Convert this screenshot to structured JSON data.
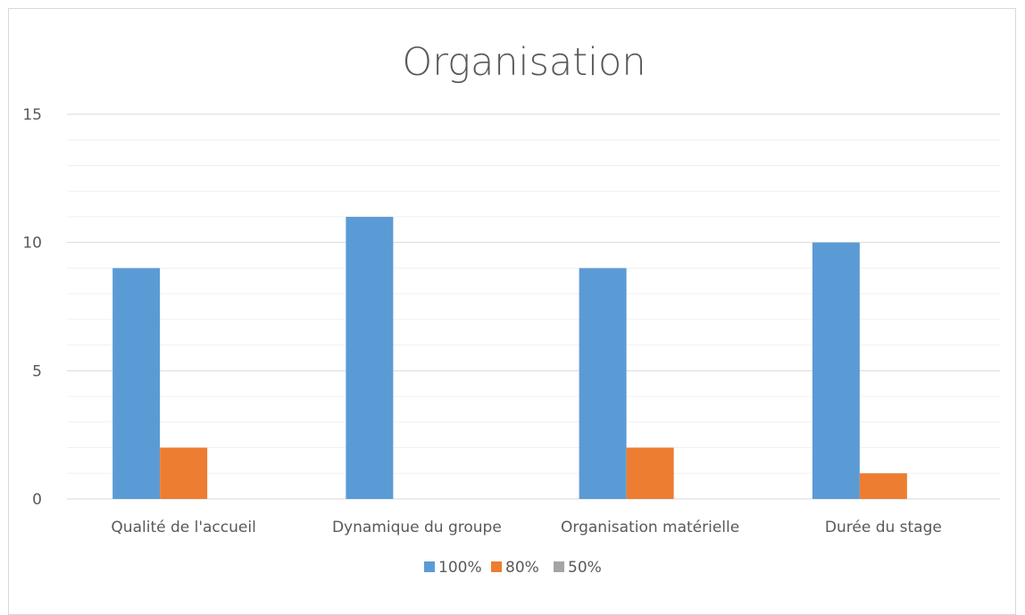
{
  "chart_data": {
    "type": "bar",
    "title": "Organisation",
    "categories": [
      "Qualité de l'accueil",
      "Dynamique du groupe",
      "Organisation matérielle",
      "Durée du stage"
    ],
    "series": [
      {
        "name": "100%",
        "values": [
          9,
          11,
          9,
          10
        ],
        "color": "#5b9bd5"
      },
      {
        "name": "80%",
        "values": [
          2,
          0,
          2,
          1
        ],
        "color": "#ed7d31"
      },
      {
        "name": "50%",
        "values": [
          0,
          0,
          0,
          0
        ],
        "color": "#a5a5a5"
      }
    ],
    "yticks": [
      "0",
      "5",
      "10",
      "15"
    ],
    "ylim": [
      0,
      15
    ],
    "major_gridlines": true,
    "minor_gridlines": true,
    "legend_position": "bottom"
  }
}
